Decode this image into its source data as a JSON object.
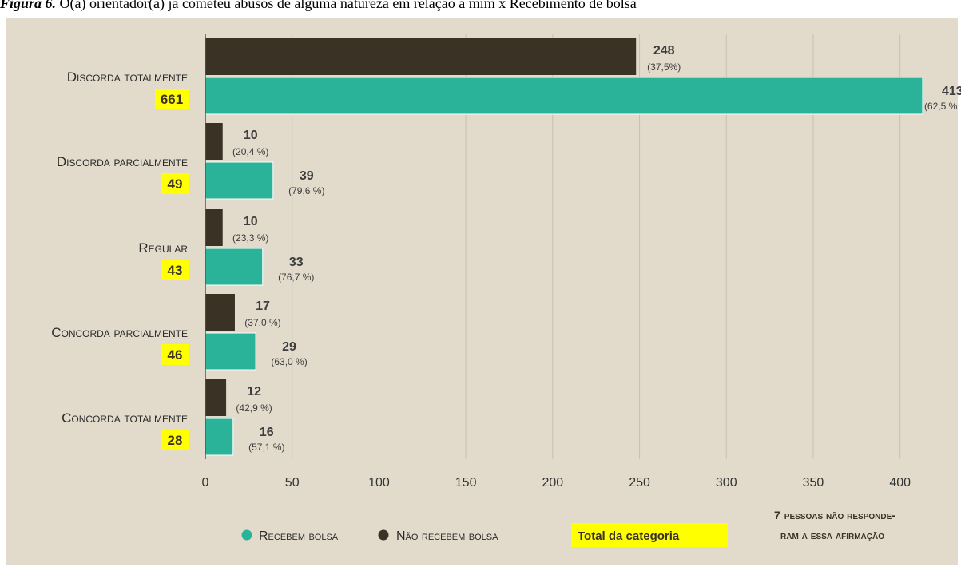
{
  "figure": {
    "label": "Figura 6.",
    "caption": "O(a) orientador(a) já cometeu abusos de alguma natureza em relação a mim x Recebimento de bolsa"
  },
  "colors": {
    "recebem": "#2bb39a",
    "nao_recebem": "#3b3226",
    "total_highlight": "#ffff00",
    "background": "#e2dacb"
  },
  "chart_data": {
    "type": "bar",
    "orientation": "horizontal",
    "title": "",
    "xlabel": "",
    "ylabel": "",
    "xlim": [
      0,
      420
    ],
    "x_ticks": [
      0,
      50,
      100,
      150,
      200,
      250,
      300,
      350,
      400
    ],
    "grid": "vertical",
    "legend_position": "bottom",
    "categories": [
      {
        "label": "Discorda totalmente",
        "total": "661"
      },
      {
        "label": "Discorda parcialmente",
        "total": "49"
      },
      {
        "label": "Regular",
        "total": "43"
      },
      {
        "label": "Concorda parcialmente",
        "total": "46"
      },
      {
        "label": "Concorda totalmente",
        "total": "28"
      }
    ],
    "series": [
      {
        "name": "Não recebem bolsa",
        "color": "#3b3226",
        "values": [
          248,
          10,
          10,
          17,
          12
        ],
        "percents": [
          "(37,5%)",
          "(20,4 %)",
          "(23,3 %)",
          "(37,0 %)",
          "(42,9 %)"
        ]
      },
      {
        "name": "Recebem bolsa",
        "color": "#2bb39a",
        "values": [
          413,
          39,
          33,
          29,
          16
        ],
        "percents": [
          "(62,5 %",
          "(79,6 %)",
          "(76,7 %)",
          "(63,0 %)",
          "(57,1 %)"
        ]
      }
    ]
  },
  "legend": {
    "recebem": "Recebem bolsa",
    "nao_recebem": "Não recebem bolsa",
    "total": "Total da categoria"
  },
  "note": {
    "count": "7",
    "line1": "pessoas não responde-",
    "line2": "ram a essa afirmação"
  }
}
